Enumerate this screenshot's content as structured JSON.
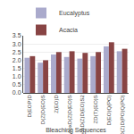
{
  "chart_data": {
    "type": "bar",
    "xlabel": "Bleaching Sequences",
    "categories": [
      "D(EOP)D",
      "D(Z)D(EO)S",
      "Z(EO)D",
      "AoxD(Z)D(EO)S",
      "AoxD(Z)D(EO)S2",
      "ZD(T)(EO)S",
      "D(EO)Q(PO)",
      "D(Z)D(PO)Q(PO)"
    ],
    "series": [
      {
        "name": "Eucalyptus",
        "color": "#aaaacc",
        "values": [
          2.15,
          1.85,
          2.35,
          2.2,
          2.1,
          2.25,
          2.85,
          2.55
        ]
      },
      {
        "name": "Acacia",
        "color": "#884444",
        "values": [
          2.25,
          2.0,
          2.5,
          2.55,
          2.45,
          2.5,
          3.1,
          2.7
        ]
      }
    ],
    "ylim": [
      0,
      3.5
    ],
    "yticks": [
      {
        "value": 0,
        "label": "0.0"
      },
      0.5,
      {
        "value": 1,
        "label": "1.0"
      },
      1.5,
      {
        "value": 2,
        "label": "2.0"
      },
      2.5,
      {
        "value": 3,
        "label": "3.0"
      },
      3.5
    ],
    "grid": true,
    "legend": "upper left"
  }
}
